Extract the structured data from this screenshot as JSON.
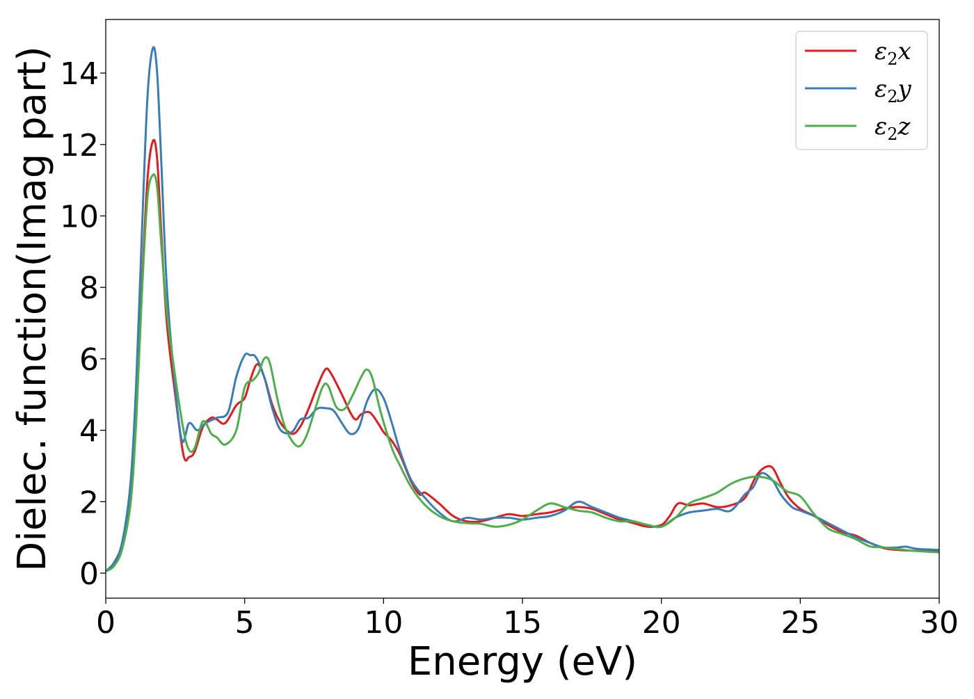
{
  "chart_data": {
    "type": "line",
    "xlabel": "Energy (eV)",
    "ylabel": "Dielec. function(Imag part)",
    "xlim": [
      0,
      30
    ],
    "ylim": [
      -0.7,
      15.5
    ],
    "xticks": [
      0,
      5,
      10,
      15,
      20,
      25,
      30
    ],
    "yticks": [
      0,
      2,
      4,
      6,
      8,
      10,
      12,
      14
    ],
    "grid": false,
    "legend_position": "top-right",
    "series": [
      {
        "name": "ε₂x",
        "legend_base": "ε",
        "legend_sub": "2",
        "legend_var": "x",
        "color": "#e41a1c",
        "x": [
          0,
          0.3,
          0.6,
          0.9,
          1.1,
          1.3,
          1.5,
          1.7,
          1.85,
          2.0,
          2.2,
          2.5,
          2.8,
          3.0,
          3.2,
          3.5,
          3.8,
          4.0,
          4.3,
          4.7,
          5.0,
          5.2,
          5.45,
          5.7,
          6.0,
          6.3,
          6.7,
          7.0,
          7.3,
          7.6,
          7.9,
          8.1,
          8.5,
          8.8,
          9.0,
          9.2,
          9.5,
          9.8,
          10.0,
          10.3,
          10.6,
          11.0,
          11.3,
          11.5,
          12.0,
          12.5,
          13.0,
          13.5,
          14.0,
          14.5,
          15.0,
          15.5,
          16.0,
          16.5,
          17.0,
          17.5,
          18.0,
          18.5,
          19.0,
          19.5,
          20.0,
          20.3,
          20.6,
          21.0,
          21.5,
          22.0,
          22.5,
          23.0,
          23.4,
          23.7,
          24.0,
          24.3,
          24.6,
          25.0,
          25.5,
          26.0,
          26.5,
          27.0,
          27.5,
          28.0,
          28.5,
          29.0,
          30.0
        ],
        "y": [
          0.05,
          0.25,
          0.8,
          2.2,
          4.6,
          8.0,
          11.0,
          12.1,
          11.6,
          9.5,
          7.0,
          5.0,
          3.3,
          3.25,
          3.4,
          4.1,
          4.35,
          4.3,
          4.2,
          4.7,
          4.9,
          5.4,
          5.85,
          5.5,
          4.7,
          4.2,
          3.9,
          4.1,
          4.6,
          5.2,
          5.7,
          5.6,
          5.0,
          4.5,
          4.3,
          4.45,
          4.5,
          4.2,
          3.95,
          3.7,
          3.3,
          2.55,
          2.2,
          2.25,
          1.95,
          1.6,
          1.45,
          1.45,
          1.55,
          1.65,
          1.6,
          1.65,
          1.7,
          1.8,
          1.85,
          1.8,
          1.65,
          1.5,
          1.4,
          1.3,
          1.35,
          1.6,
          1.95,
          1.9,
          1.95,
          1.85,
          1.9,
          2.1,
          2.7,
          2.95,
          2.95,
          2.5,
          2.1,
          1.8,
          1.6,
          1.35,
          1.15,
          1.05,
          0.85,
          0.7,
          0.65,
          0.63,
          0.6
        ]
      },
      {
        "name": "ε₂y",
        "legend_base": "ε",
        "legend_sub": "2",
        "legend_var": "y",
        "color": "#377eb8",
        "x": [
          0,
          0.3,
          0.6,
          0.9,
          1.1,
          1.3,
          1.5,
          1.7,
          1.85,
          2.0,
          2.2,
          2.5,
          2.75,
          3.0,
          3.3,
          3.6,
          4.0,
          4.4,
          4.7,
          5.0,
          5.2,
          5.4,
          5.7,
          6.0,
          6.3,
          6.7,
          7.0,
          7.3,
          7.6,
          7.9,
          8.2,
          8.5,
          8.8,
          9.1,
          9.4,
          9.7,
          10.0,
          10.3,
          10.6,
          11.0,
          11.5,
          12.0,
          12.5,
          13.0,
          13.5,
          14.0,
          14.5,
          15.0,
          15.5,
          16.0,
          16.5,
          17.0,
          17.5,
          18.0,
          18.5,
          19.0,
          19.5,
          20.0,
          20.5,
          21.0,
          21.5,
          22.0,
          22.5,
          23.0,
          23.3,
          23.6,
          24.0,
          24.3,
          24.7,
          25.0,
          25.5,
          26.0,
          26.5,
          27.0,
          27.5,
          28.0,
          28.5,
          28.8,
          29.2,
          30.0
        ],
        "y": [
          0.05,
          0.3,
          0.9,
          2.6,
          5.4,
          9.5,
          13.3,
          14.7,
          14.0,
          11.5,
          8.0,
          5.2,
          3.7,
          4.2,
          4.0,
          4.2,
          4.35,
          4.5,
          5.5,
          6.1,
          6.1,
          6.05,
          5.5,
          4.6,
          4.0,
          3.95,
          4.3,
          4.35,
          4.6,
          4.62,
          4.55,
          4.2,
          3.9,
          4.05,
          4.8,
          5.15,
          4.9,
          4.2,
          3.4,
          2.6,
          2.1,
          1.7,
          1.45,
          1.55,
          1.5,
          1.55,
          1.55,
          1.5,
          1.55,
          1.6,
          1.75,
          2.0,
          1.85,
          1.7,
          1.55,
          1.45,
          1.35,
          1.3,
          1.55,
          1.7,
          1.75,
          1.8,
          1.75,
          2.2,
          2.4,
          2.8,
          2.6,
          2.2,
          1.85,
          1.75,
          1.6,
          1.4,
          1.2,
          1.0,
          0.85,
          0.72,
          0.72,
          0.74,
          0.68,
          0.65
        ]
      },
      {
        "name": "ε₂z",
        "legend_base": "ε",
        "legend_sub": "2",
        "legend_var": "z",
        "color": "#4daf4a",
        "x": [
          0,
          0.3,
          0.6,
          0.9,
          1.1,
          1.3,
          1.5,
          1.7,
          1.85,
          2.0,
          2.2,
          2.5,
          2.8,
          3.0,
          3.2,
          3.5,
          3.8,
          4.0,
          4.3,
          4.7,
          5.0,
          5.3,
          5.5,
          5.7,
          5.9,
          6.2,
          6.5,
          6.9,
          7.2,
          7.5,
          7.8,
          8.0,
          8.3,
          8.6,
          8.9,
          9.2,
          9.4,
          9.6,
          9.9,
          10.3,
          10.6,
          11.0,
          11.5,
          12.0,
          12.5,
          13.0,
          13.5,
          14.0,
          14.5,
          15.0,
          15.5,
          16.0,
          16.5,
          17.0,
          17.5,
          18.0,
          18.5,
          19.0,
          19.5,
          20.0,
          20.5,
          21.0,
          21.5,
          22.0,
          22.5,
          23.0,
          23.5,
          24.0,
          24.5,
          25.0,
          25.5,
          26.0,
          26.5,
          27.0,
          27.5,
          28.0,
          29.0,
          30.0
        ],
        "y": [
          0.05,
          0.2,
          0.7,
          2.0,
          4.3,
          7.8,
          10.5,
          11.15,
          10.8,
          9.2,
          7.3,
          5.5,
          4.0,
          3.45,
          3.5,
          4.25,
          3.9,
          3.8,
          3.6,
          4.0,
          5.2,
          5.4,
          5.6,
          6.0,
          5.9,
          4.8,
          4.0,
          3.55,
          3.8,
          4.5,
          5.2,
          5.25,
          4.65,
          4.6,
          5.0,
          5.5,
          5.7,
          5.45,
          4.5,
          3.5,
          3.0,
          2.4,
          1.9,
          1.6,
          1.45,
          1.4,
          1.38,
          1.3,
          1.35,
          1.5,
          1.75,
          1.95,
          1.85,
          1.75,
          1.7,
          1.55,
          1.45,
          1.45,
          1.35,
          1.3,
          1.55,
          1.95,
          2.1,
          2.25,
          2.5,
          2.65,
          2.7,
          2.6,
          2.3,
          2.15,
          1.65,
          1.25,
          1.1,
          0.95,
          0.75,
          0.72,
          0.63,
          0.58
        ]
      }
    ]
  }
}
